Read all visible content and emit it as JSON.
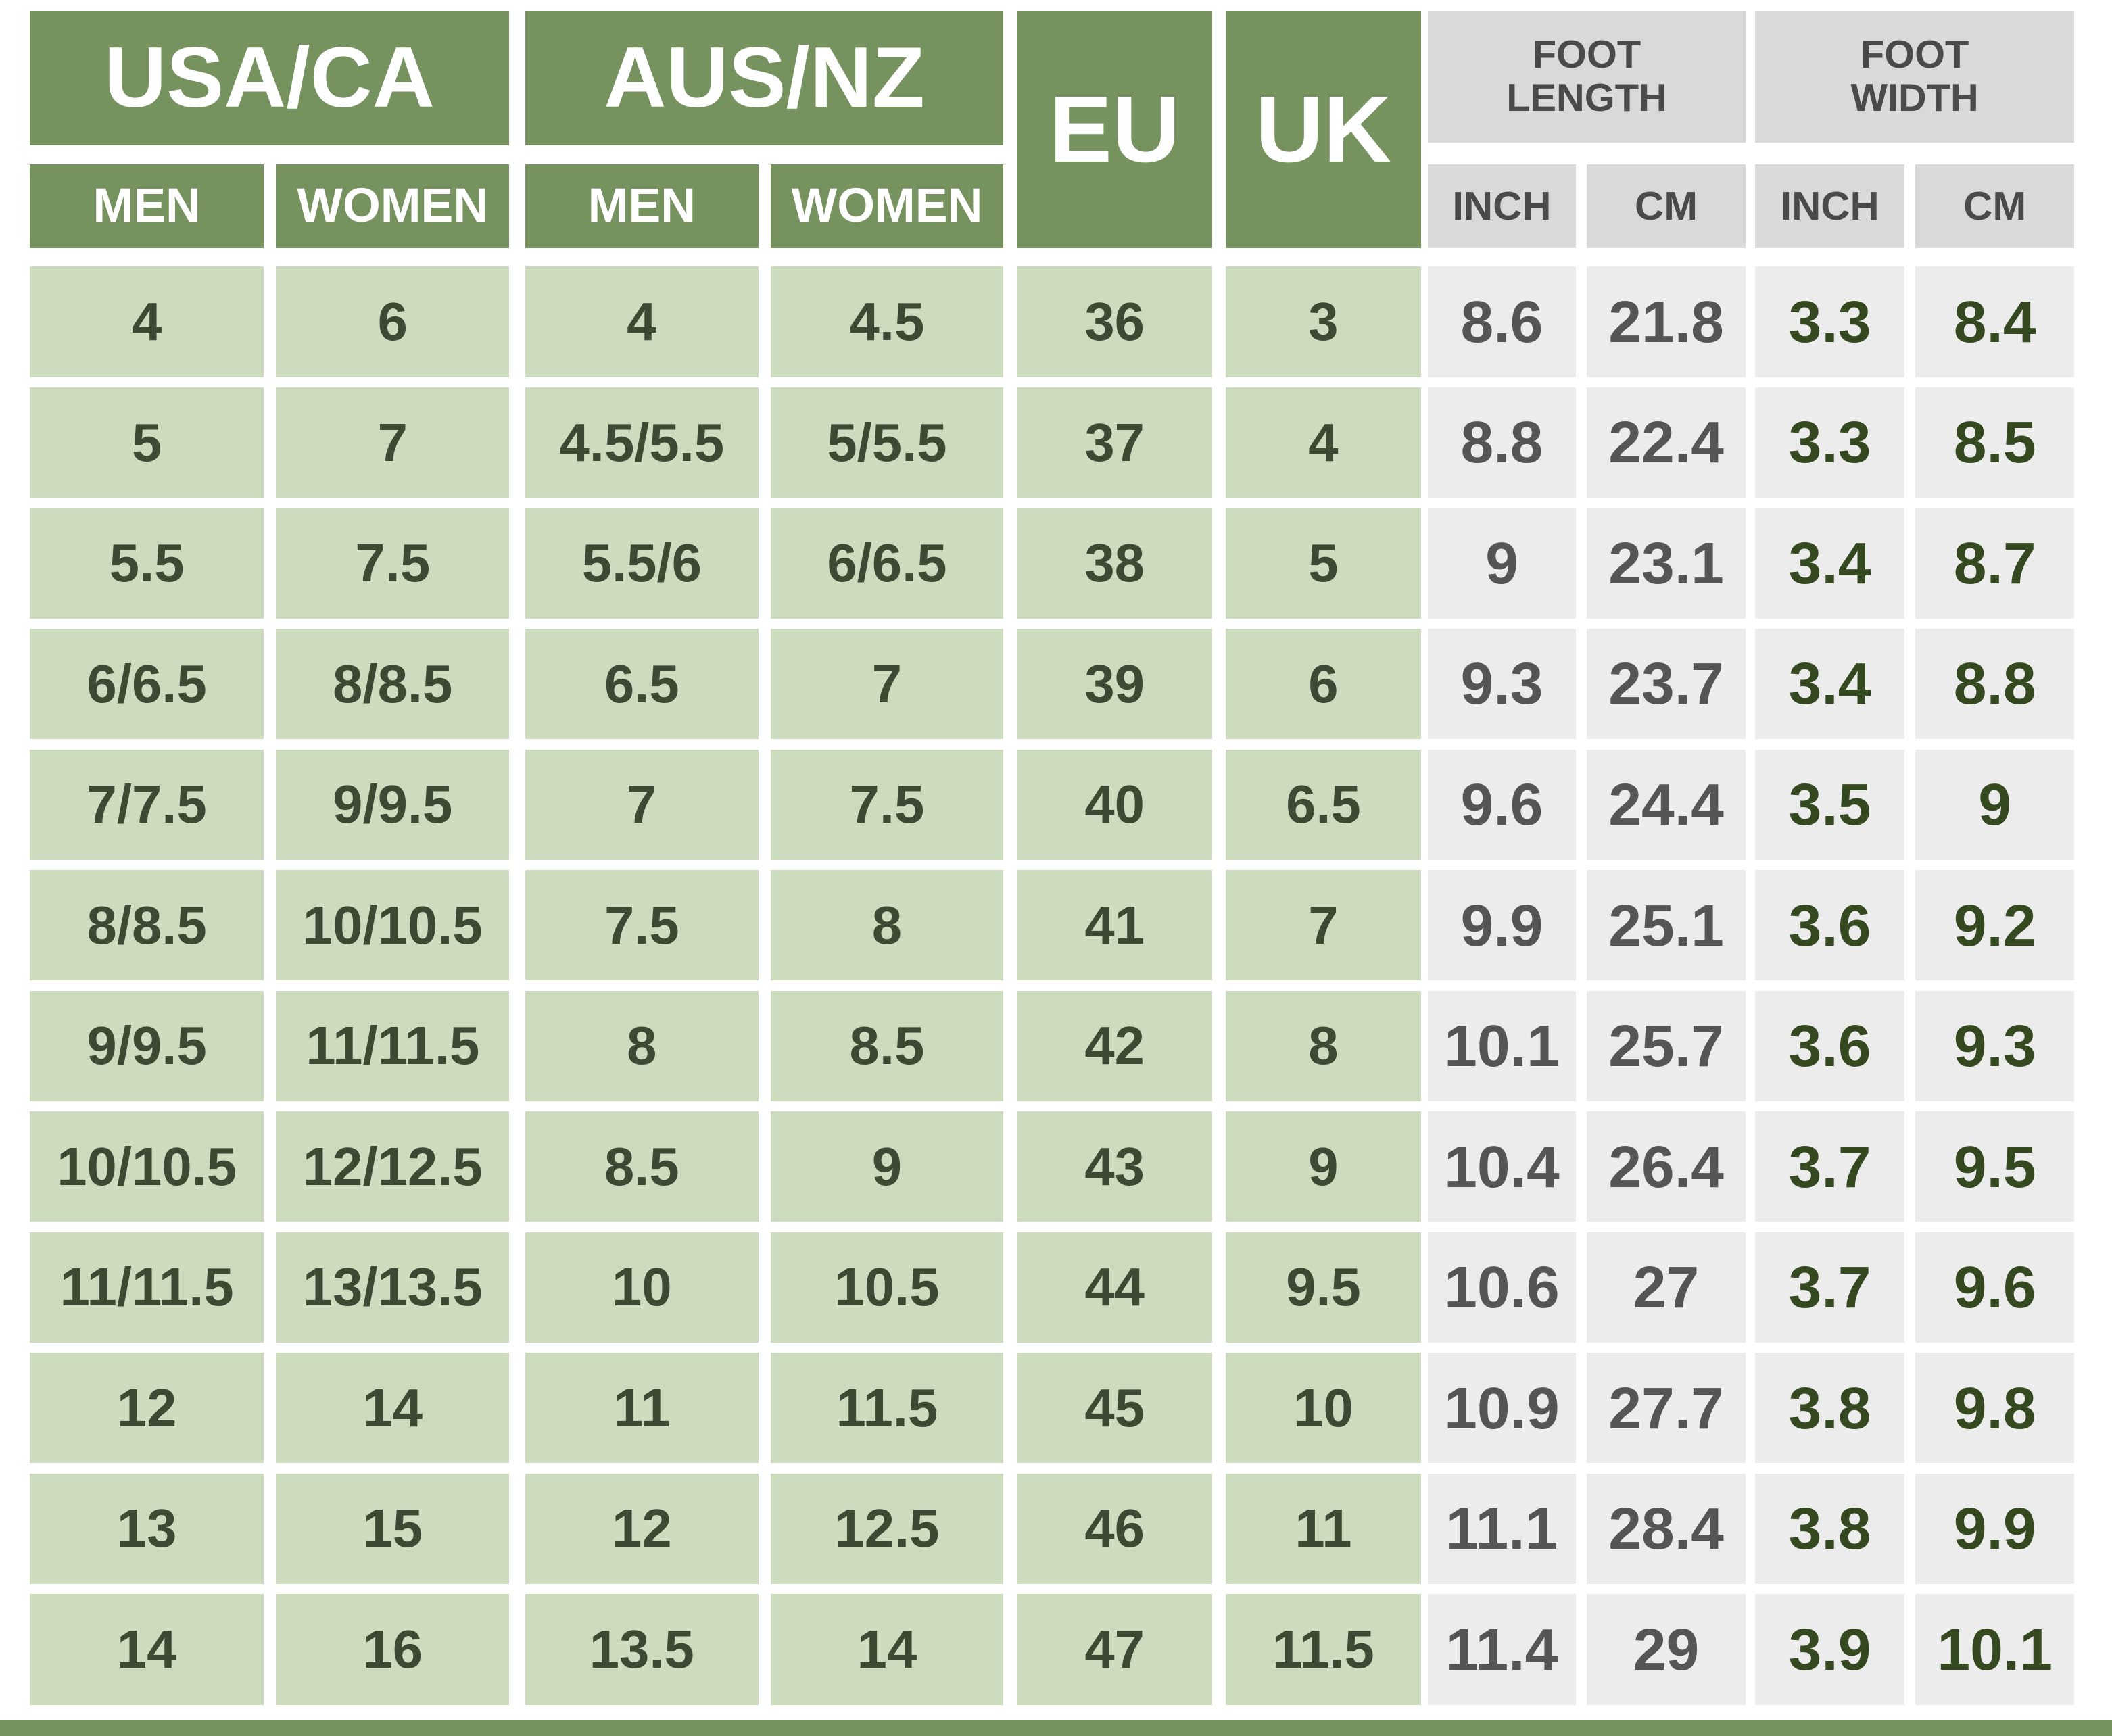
{
  "header": {
    "groups": [
      {
        "title": "USA/CA",
        "sub": [
          "MEN",
          "WOMEN"
        ]
      },
      {
        "title": "AUS/NZ",
        "sub": [
          "MEN",
          "WOMEN"
        ]
      },
      {
        "title": "EU"
      },
      {
        "title": "UK"
      },
      {
        "title": "FOOT LENGTH",
        "sub": [
          "INCH",
          "CM"
        ]
      },
      {
        "title": "FOOT WIDTH",
        "sub": [
          "INCH",
          "CM"
        ]
      }
    ]
  },
  "table": {
    "rows": [
      [
        "4",
        "6",
        "4",
        "4.5",
        "36",
        "3",
        "8.6",
        "21.8",
        "3.3",
        "8.4"
      ],
      [
        "5",
        "7",
        "4.5/5.5",
        "5/5.5",
        "37",
        "4",
        "8.8",
        "22.4",
        "3.3",
        "8.5"
      ],
      [
        "5.5",
        "7.5",
        "5.5/6",
        "6/6.5",
        "38",
        "5",
        "9",
        "23.1",
        "3.4",
        "8.7"
      ],
      [
        "6/6.5",
        "8/8.5",
        "6.5",
        "7",
        "39",
        "6",
        "9.3",
        "23.7",
        "3.4",
        "8.8"
      ],
      [
        "7/7.5",
        "9/9.5",
        "7",
        "7.5",
        "40",
        "6.5",
        "9.6",
        "24.4",
        "3.5",
        "9"
      ],
      [
        "8/8.5",
        "10/10.5",
        "7.5",
        "8",
        "41",
        "7",
        "9.9",
        "25.1",
        "3.6",
        "9.2"
      ],
      [
        "9/9.5",
        "11/11.5",
        "8",
        "8.5",
        "42",
        "8",
        "10.1",
        "25.7",
        "3.6",
        "9.3"
      ],
      [
        "10/10.5",
        "12/12.5",
        "8.5",
        "9",
        "43",
        "9",
        "10.4",
        "26.4",
        "3.7",
        "9.5"
      ],
      [
        "11/11.5",
        "13/13.5",
        "10",
        "10.5",
        "44",
        "9.5",
        "10.6",
        "27",
        "3.7",
        "9.6"
      ],
      [
        "12",
        "14",
        "11",
        "11.5",
        "45",
        "10",
        "10.9",
        "27.7",
        "3.8",
        "9.8"
      ],
      [
        "13",
        "15",
        "12",
        "12.5",
        "46",
        "11",
        "11.1",
        "28.4",
        "3.8",
        "9.9"
      ],
      [
        "14",
        "16",
        "13.5",
        "14",
        "47",
        "11.5",
        "11.4",
        "29",
        "3.9",
        "10.1"
      ]
    ]
  }
}
